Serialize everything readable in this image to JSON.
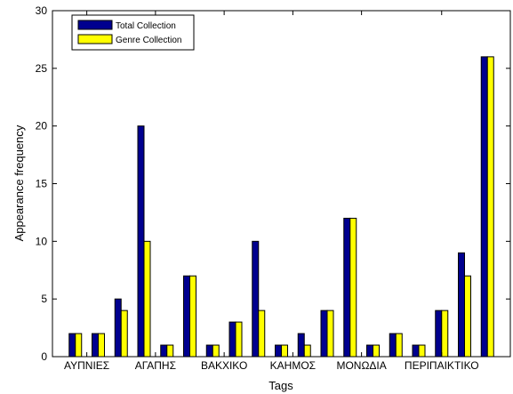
{
  "chart_data": {
    "type": "bar",
    "xlabel": "Tags",
    "ylabel": "Appearance frequency",
    "ylim": [
      0,
      30
    ],
    "yticks": [
      0,
      5,
      10,
      15,
      20,
      25,
      30
    ],
    "xlim": [
      0,
      20
    ],
    "xtick_labels": [
      {
        "x": 1.5,
        "label": "ΑΥΠΝΙΕΣ"
      },
      {
        "x": 4.5,
        "label": "ΑΓΑΠΗΣ"
      },
      {
        "x": 7.5,
        "label": "ΒΑΚΧΙΚΟ"
      },
      {
        "x": 10.5,
        "label": "ΚΑΗΜΟΣ"
      },
      {
        "x": 13.5,
        "label": "ΜΟΝΩΔΙΑ"
      },
      {
        "x": 17,
        "label": "ΠΕΡΙΠΑΙΚΤΙΚΟ"
      }
    ],
    "legend_position": "top-left",
    "grid": false,
    "series": [
      {
        "name": "Total Collection",
        "color": "#00008f",
        "values": [
          2,
          2,
          5,
          20,
          1,
          7,
          1,
          3,
          10,
          1,
          2,
          4,
          12,
          1,
          2,
          1,
          4,
          9,
          26
        ]
      },
      {
        "name": "Genre Collection",
        "color": "#ffff00",
        "values": [
          2,
          2,
          4,
          10,
          1,
          7,
          1,
          3,
          4,
          1,
          1,
          4,
          12,
          1,
          2,
          1,
          4,
          7,
          26
        ]
      }
    ]
  }
}
